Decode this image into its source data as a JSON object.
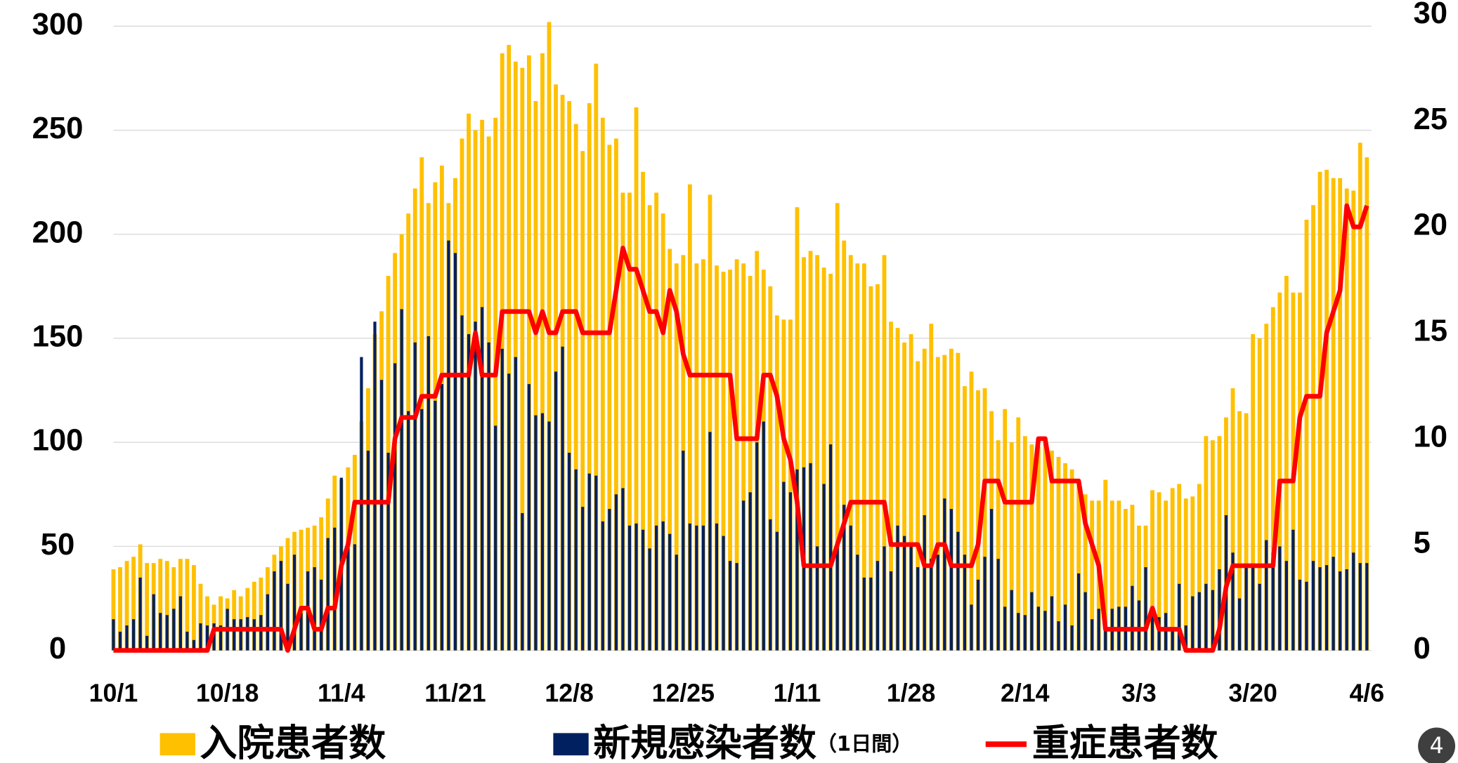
{
  "chart_data": {
    "type": "bar_line",
    "categories": [
      "10/1",
      null,
      null,
      null,
      null,
      null,
      null,
      null,
      null,
      null,
      null,
      null,
      null,
      null,
      null,
      null,
      null,
      "10/18",
      null,
      null,
      null,
      null,
      null,
      null,
      null,
      null,
      null,
      null,
      null,
      null,
      null,
      null,
      null,
      null,
      "11/4",
      null,
      null,
      null,
      null,
      null,
      null,
      null,
      null,
      null,
      null,
      null,
      null,
      null,
      null,
      null,
      null,
      "11/21",
      null,
      null,
      null,
      null,
      null,
      null,
      null,
      null,
      null,
      null,
      null,
      null,
      null,
      null,
      null,
      null,
      "12/8",
      null,
      null,
      null,
      null,
      null,
      null,
      null,
      null,
      null,
      null,
      null,
      null,
      null,
      null,
      null,
      null,
      "12/25",
      null,
      null,
      null,
      null,
      null,
      null,
      null,
      null,
      null,
      null,
      null,
      null,
      null,
      null,
      null,
      null,
      "1/11",
      null,
      null,
      null,
      null,
      null,
      null,
      null,
      null,
      null,
      null,
      null,
      null,
      null,
      null,
      null,
      null,
      "1/28",
      null,
      null,
      null,
      null,
      null,
      null,
      null,
      null,
      null,
      null,
      null,
      null,
      null,
      null,
      null,
      null,
      "2/14",
      null,
      null,
      null,
      null,
      null,
      null,
      null,
      null,
      null,
      null,
      null,
      null,
      null,
      null,
      null,
      null,
      "3/3",
      null,
      null,
      null,
      null,
      null,
      null,
      null,
      null,
      null,
      null,
      null,
      null,
      null,
      null,
      null,
      null,
      "3/20",
      null,
      null,
      null,
      null,
      null,
      null,
      null,
      null,
      null,
      null,
      null,
      null,
      null,
      null,
      null,
      null,
      "4/6"
    ],
    "series": [
      {
        "name": "入院患者数",
        "color": "#ffc000",
        "kind": "bar",
        "values": [
          39,
          40,
          43,
          45,
          51,
          42,
          42,
          44,
          43,
          40,
          44,
          44,
          41,
          32,
          26,
          22,
          26,
          25,
          29,
          26,
          30,
          33,
          35,
          40,
          46,
          50,
          54,
          57,
          58,
          59,
          60,
          64,
          73,
          84,
          82,
          88,
          94,
          110,
          126,
          152,
          163,
          180,
          191,
          200,
          210,
          222,
          237,
          215,
          225,
          233,
          215,
          227,
          246,
          258,
          250,
          255,
          247,
          256,
          287,
          291,
          283,
          280,
          286,
          264,
          287,
          302,
          272,
          267,
          264,
          253,
          240,
          263,
          282,
          256,
          243,
          246,
          220,
          220,
          261,
          230,
          214,
          220,
          210,
          193,
          186,
          190,
          224,
          186,
          188,
          219,
          185,
          182,
          183,
          188,
          186,
          180,
          192,
          183,
          175,
          161,
          159,
          159,
          213,
          189,
          192,
          190,
          184,
          181,
          215,
          197,
          190,
          186,
          186,
          175,
          176,
          190,
          158,
          155,
          148,
          152,
          139,
          145,
          157,
          141,
          142,
          145,
          143,
          127,
          134,
          125,
          126,
          115,
          101,
          116,
          100,
          112,
          103,
          99,
          98,
          100,
          96,
          93,
          90,
          87,
          82,
          75,
          72,
          72,
          82,
          72,
          72,
          68,
          70,
          60,
          60,
          77,
          76,
          72,
          78,
          80,
          73,
          74,
          80,
          103,
          101,
          103,
          112,
          126,
          115,
          114,
          152,
          150,
          157,
          165,
          172,
          180,
          172,
          172,
          207,
          214,
          230,
          231,
          227,
          227,
          222,
          221,
          244,
          237
        ]
      },
      {
        "name": "新規感染者数",
        "name_suffix": "（1日間）",
        "color": "#002060",
        "kind": "bar",
        "values": [
          15,
          9,
          12,
          15,
          35,
          7,
          27,
          18,
          17,
          20,
          26,
          9,
          5,
          13,
          12,
          13,
          12,
          20,
          15,
          15,
          16,
          15,
          17,
          27,
          38,
          43,
          32,
          46,
          18,
          38,
          40,
          34,
          54,
          59,
          83,
          50,
          51,
          141,
          96,
          158,
          130,
          95,
          138,
          164,
          115,
          148,
          116,
          151,
          120,
          128,
          197,
          191,
          161,
          152,
          158,
          165,
          148,
          108,
          145,
          133,
          141,
          66,
          128,
          113,
          114,
          110,
          134,
          146,
          95,
          87,
          69,
          85,
          84,
          62,
          68,
          75,
          78,
          60,
          61,
          58,
          49,
          60,
          62,
          56,
          46,
          96,
          61,
          60,
          60,
          105,
          61,
          55,
          43,
          42,
          72,
          76,
          100,
          110,
          63,
          57,
          81,
          76,
          87,
          88,
          90,
          50,
          80,
          99,
          50,
          70,
          60,
          46,
          35,
          35,
          43,
          50,
          38,
          60,
          55,
          50,
          40,
          65,
          44,
          46,
          73,
          68,
          57,
          46,
          22,
          34,
          45,
          68,
          44,
          21,
          29,
          18,
          17,
          28,
          21,
          19,
          26,
          14,
          22,
          12,
          37,
          28,
          15,
          20,
          14,
          20,
          21,
          21,
          31,
          24,
          40,
          18,
          16,
          18,
          10,
          32,
          12,
          26,
          28,
          32,
          29,
          39,
          65,
          47,
          25,
          40,
          40,
          32,
          53,
          47,
          50,
          43,
          58,
          34,
          33,
          43,
          40,
          41,
          45,
          38,
          39,
          47,
          42,
          42
        ]
      },
      {
        "name": "重症患者数",
        "color": "#ff0000",
        "kind": "line",
        "axis": "y2",
        "values": [
          0,
          0,
          0,
          0,
          0,
          0,
          0,
          0,
          0,
          0,
          0,
          0,
          0,
          0,
          0,
          1,
          1,
          1,
          1,
          1,
          1,
          1,
          1,
          1,
          1,
          1,
          0,
          1,
          2,
          2,
          1,
          1,
          2,
          2,
          4,
          5,
          7,
          7,
          7,
          7,
          7,
          7,
          10,
          11,
          11,
          11,
          12,
          12,
          12,
          13,
          13,
          13,
          13,
          13,
          15,
          13,
          13,
          13,
          16,
          16,
          16,
          16,
          16,
          15,
          16,
          15,
          15,
          16,
          16,
          16,
          15,
          15,
          15,
          15,
          15,
          17,
          19,
          18,
          18,
          17,
          16,
          16,
          15,
          17,
          16,
          14,
          13,
          13,
          13,
          13,
          13,
          13,
          13,
          10,
          10,
          10,
          10,
          13,
          13,
          12,
          10,
          9,
          7,
          4,
          4,
          4,
          4,
          4,
          5,
          6,
          7,
          7,
          7,
          7,
          7,
          7,
          5,
          5,
          5,
          5,
          5,
          4,
          4,
          5,
          5,
          4,
          4,
          4,
          4,
          5,
          8,
          8,
          8,
          7,
          7,
          7,
          7,
          7,
          10,
          10,
          8,
          8,
          8,
          8,
          8,
          6,
          5,
          4,
          1,
          1,
          1,
          1,
          1,
          1,
          1,
          2,
          1,
          1,
          1,
          1,
          0,
          0,
          0,
          0,
          0,
          1,
          3,
          4,
          4,
          4,
          4,
          4,
          4,
          4,
          8,
          8,
          8,
          11,
          12,
          12,
          12,
          15,
          16,
          17,
          21,
          20,
          20,
          21
        ]
      }
    ],
    "ylim": [
      0,
      300
    ],
    "yticks": [
      0,
      50,
      100,
      150,
      200,
      250,
      300
    ],
    "y2lim": [
      0,
      30
    ],
    "y2ticks": [
      0,
      5,
      10,
      15,
      20,
      25,
      30
    ],
    "grid": true
  },
  "page_number": "4"
}
